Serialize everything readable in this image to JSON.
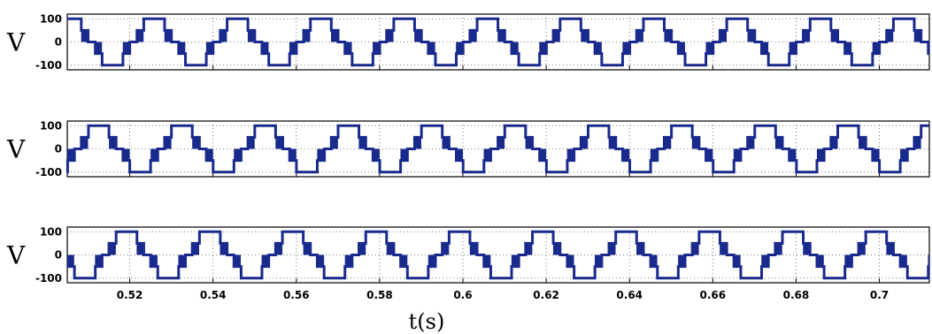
{
  "chart_data": [
    {
      "type": "line",
      "ylabel": "V",
      "xlim": [
        0.505,
        0.712
      ],
      "ylim": [
        -120,
        120
      ],
      "yticks": [
        100,
        0,
        -100
      ],
      "xticks": [
        0.52,
        0.54,
        0.56,
        0.58,
        0.6,
        0.62,
        0.64,
        0.66,
        0.68,
        0.7
      ],
      "grid": true,
      "series": [
        {
          "color": "#1a2a8c",
          "period": 0.02,
          "phase": 0.0,
          "amplitude": 100,
          "levels": [
            0,
            50,
            100
          ]
        }
      ]
    },
    {
      "type": "line",
      "ylabel": "V",
      "xlim": [
        0.505,
        0.712
      ],
      "ylim": [
        -120,
        120
      ],
      "yticks": [
        100,
        0,
        -100
      ],
      "xticks": [
        0.52,
        0.54,
        0.56,
        0.58,
        0.6,
        0.62,
        0.64,
        0.66,
        0.68,
        0.7
      ],
      "grid": true,
      "series": [
        {
          "color": "#1a2a8c",
          "period": 0.02,
          "phase": 0.00667,
          "amplitude": 100,
          "levels": [
            0,
            50,
            100
          ]
        }
      ]
    },
    {
      "type": "line",
      "ylabel": "V",
      "xlim": [
        0.505,
        0.712
      ],
      "ylim": [
        -120,
        120
      ],
      "yticks": [
        100,
        0,
        -100
      ],
      "xticks": [
        0.52,
        0.54,
        0.56,
        0.58,
        0.6,
        0.62,
        0.64,
        0.66,
        0.68,
        0.7
      ],
      "xticklabels": [
        "0.52",
        "0.54",
        "0.56",
        "0.58",
        "0.6",
        "0.62",
        "0.64",
        "0.66",
        "0.68",
        "0.7"
      ],
      "grid": true,
      "series": [
        {
          "color": "#1a2a8c",
          "period": 0.02,
          "phase": 0.01333,
          "amplitude": 100,
          "levels": [
            0,
            50,
            100
          ]
        }
      ]
    }
  ],
  "xlabel": "t(s)",
  "ytick_labels": [
    "100",
    "0",
    "-100"
  ]
}
